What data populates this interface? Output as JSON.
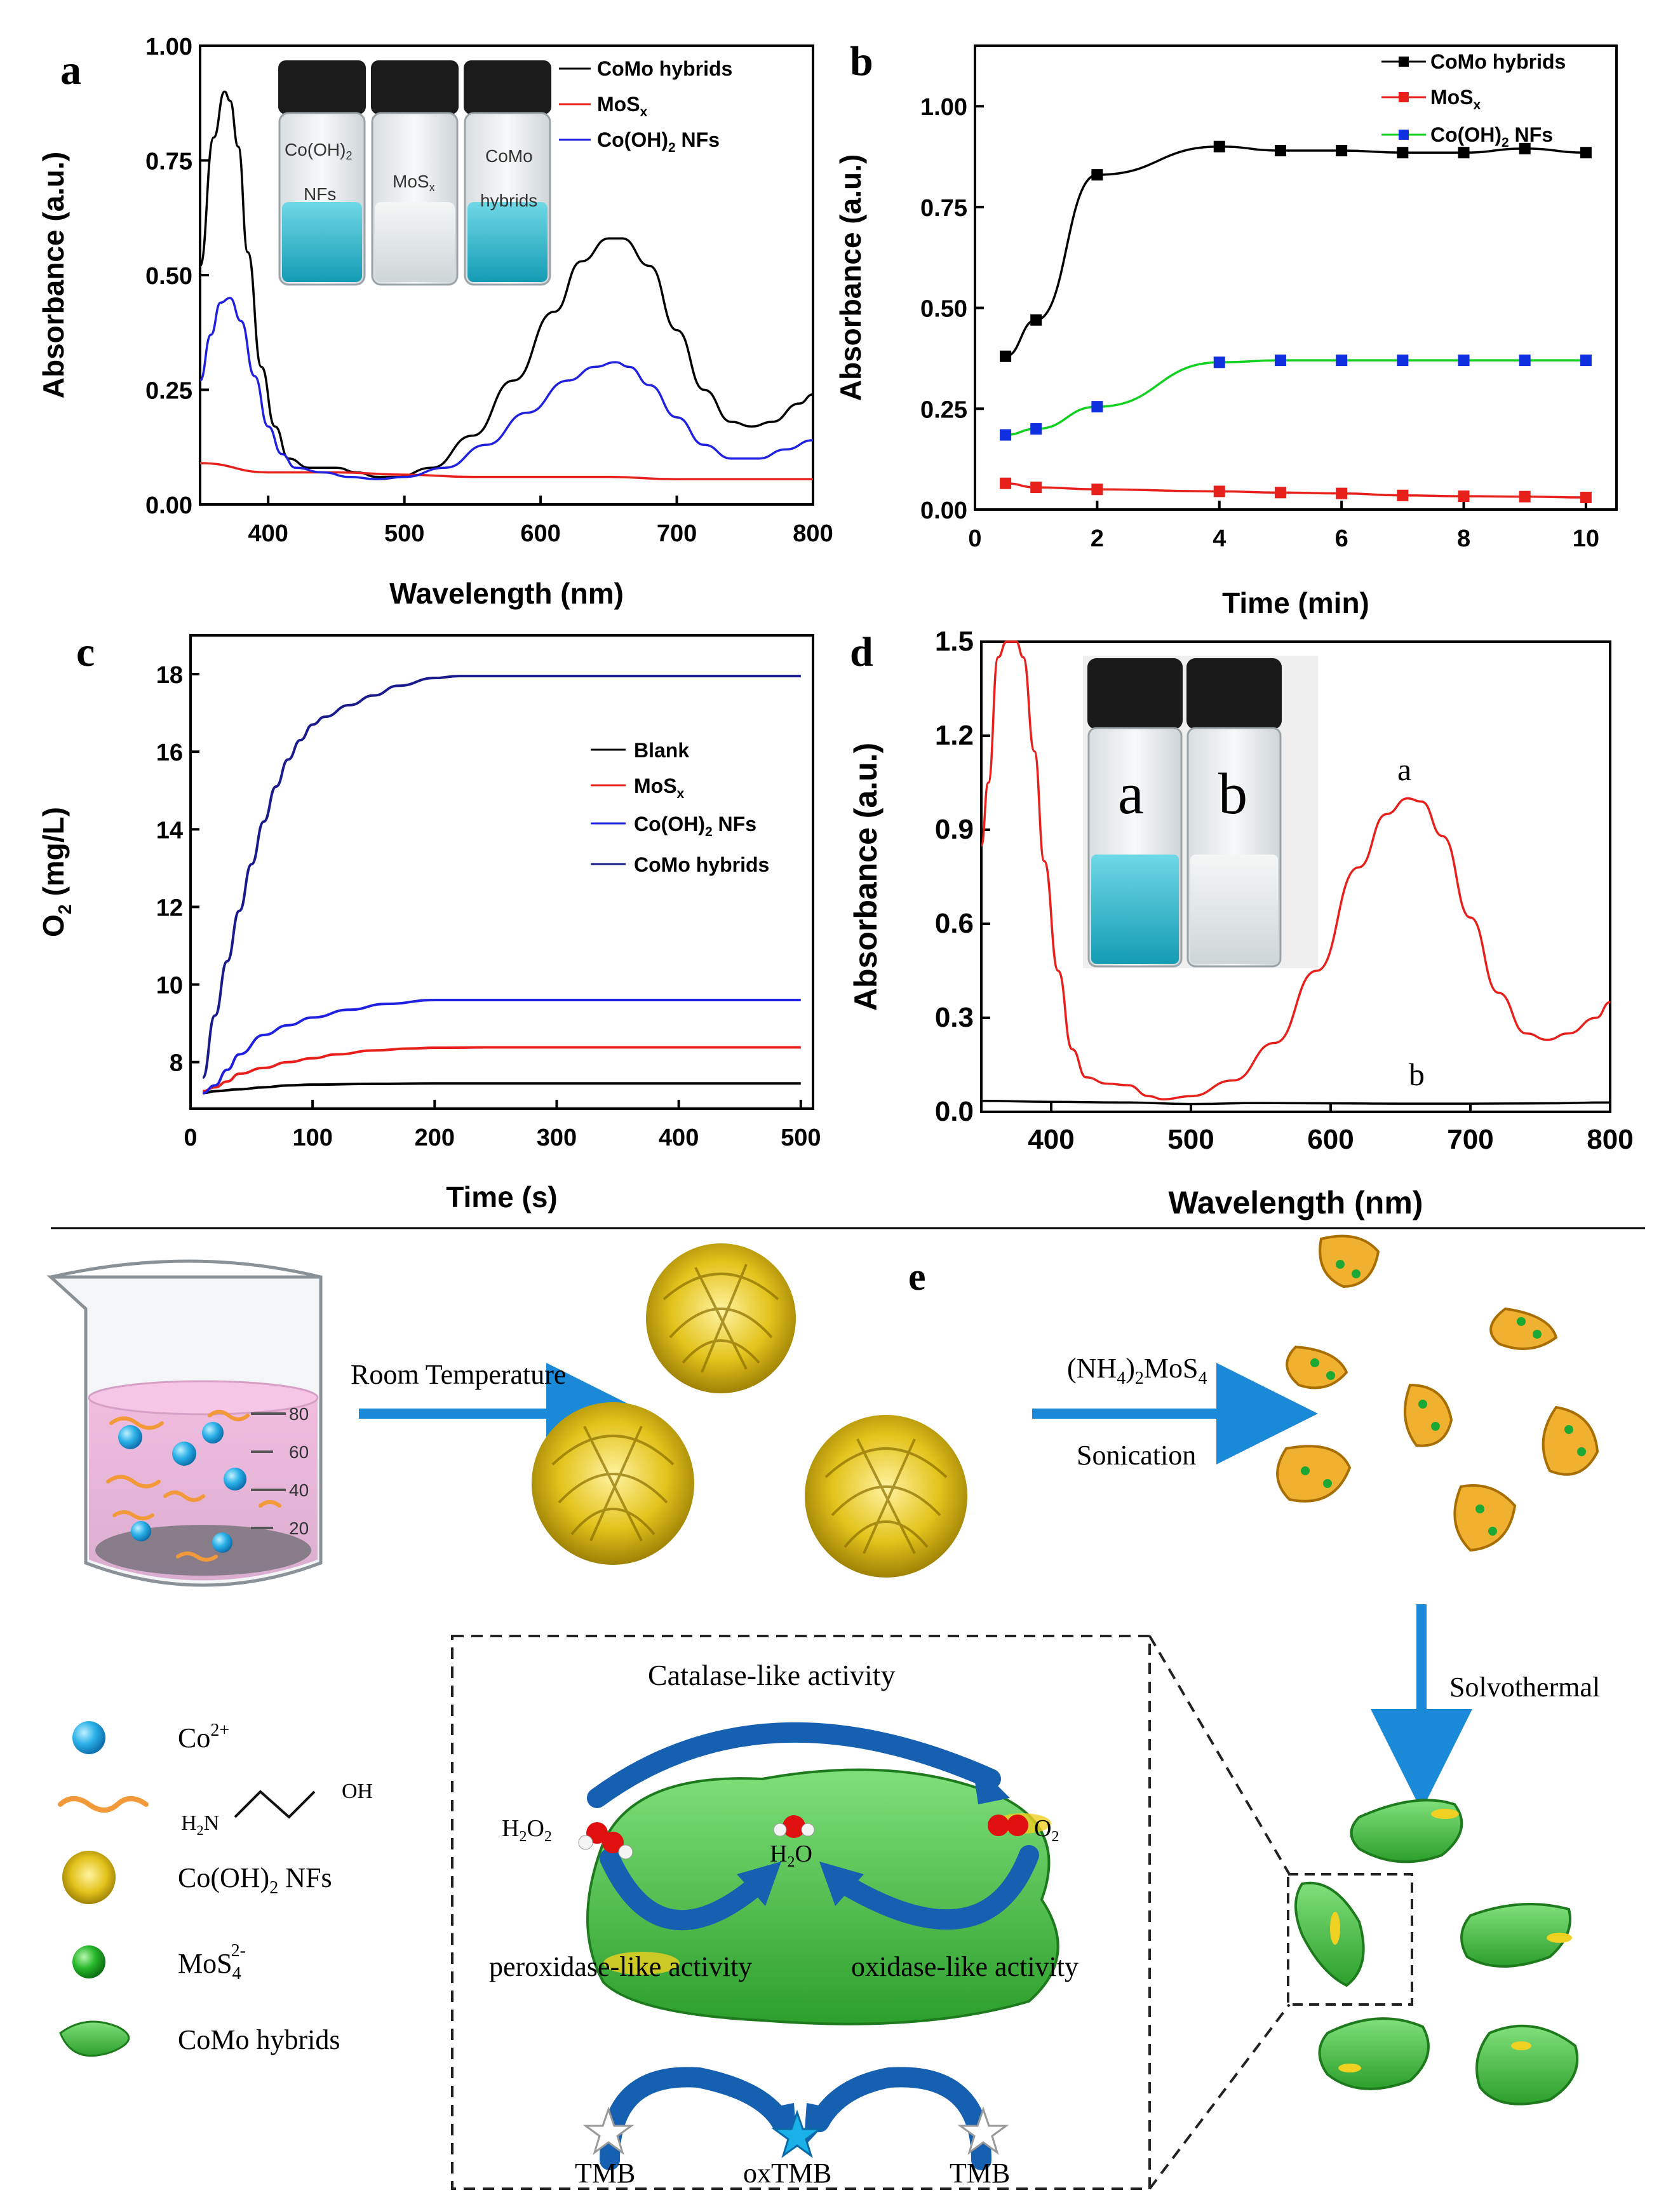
{
  "panel_letters": {
    "a": "a",
    "b": "b",
    "c": "c",
    "d": "d",
    "e": "e"
  },
  "chart_data": [
    {
      "id": "a",
      "type": "line",
      "xlabel": "Wavelength (nm)",
      "ylabel": "Absorbance (a.u.)",
      "xlim": [
        350,
        800
      ],
      "ylim": [
        0,
        1.0
      ],
      "xticks": [
        400,
        500,
        600,
        700,
        800
      ],
      "yticks": [
        0.0,
        0.25,
        0.5,
        0.75,
        1.0
      ],
      "xtick_labels": [
        "400",
        "500",
        "600",
        "700",
        "800"
      ],
      "ytick_labels": [
        "0.00",
        "0.25",
        "0.50",
        "0.75",
        "1.00"
      ],
      "legend_position": "top-right",
      "series": [
        {
          "name": "CoMo hybrids",
          "color": "#000000",
          "x": [
            350,
            360,
            368,
            372,
            378,
            385,
            395,
            405,
            415,
            430,
            450,
            465,
            480,
            495,
            520,
            550,
            580,
            610,
            630,
            650,
            660,
            680,
            700,
            720,
            740,
            755,
            770,
            790,
            800
          ],
          "y": [
            0.52,
            0.8,
            0.9,
            0.88,
            0.78,
            0.55,
            0.3,
            0.17,
            0.1,
            0.08,
            0.08,
            0.07,
            0.06,
            0.06,
            0.08,
            0.15,
            0.27,
            0.42,
            0.53,
            0.58,
            0.58,
            0.52,
            0.38,
            0.25,
            0.18,
            0.17,
            0.18,
            0.22,
            0.24
          ]
        },
        {
          "name": "MoSx",
          "color": "#e8201c",
          "x": [
            350,
            400,
            450,
            500,
            550,
            600,
            650,
            700,
            750,
            800
          ],
          "y": [
            0.09,
            0.07,
            0.07,
            0.065,
            0.06,
            0.06,
            0.06,
            0.055,
            0.055,
            0.055
          ]
        },
        {
          "name": "Co(OH)2 NFs",
          "color": "#2020e0",
          "x": [
            350,
            358,
            365,
            372,
            380,
            390,
            400,
            410,
            420,
            440,
            460,
            480,
            500,
            530,
            560,
            590,
            620,
            640,
            655,
            665,
            680,
            700,
            720,
            740,
            760,
            780,
            800
          ],
          "y": [
            0.27,
            0.37,
            0.44,
            0.45,
            0.4,
            0.28,
            0.17,
            0.11,
            0.08,
            0.07,
            0.06,
            0.055,
            0.06,
            0.08,
            0.13,
            0.2,
            0.27,
            0.3,
            0.31,
            0.3,
            0.26,
            0.19,
            0.13,
            0.1,
            0.1,
            0.12,
            0.14
          ]
        }
      ],
      "legend_entries": [
        "CoMo hybrids",
        "MoS",
        "Co(OH)",
        "NFs"
      ],
      "vial_labels": [
        "Co(OH)",
        "NFs",
        "MoS",
        "CoMo",
        "hybrids"
      ]
    },
    {
      "id": "b",
      "type": "line",
      "xlabel": "Time (min)",
      "ylabel": "Absorbance (a.u.)",
      "xlim": [
        0,
        10.5
      ],
      "ylim": [
        0,
        1.15
      ],
      "xticks": [
        0,
        2,
        4,
        6,
        8,
        10
      ],
      "yticks": [
        0.0,
        0.25,
        0.5,
        0.75,
        1.0
      ],
      "xtick_labels": [
        "0",
        "2",
        "4",
        "6",
        "8",
        "10"
      ],
      "ytick_labels": [
        "0.00",
        "0.25",
        "0.50",
        "0.75",
        "1.00"
      ],
      "legend_position": "top-right",
      "series": [
        {
          "name": "CoMo hybrids",
          "color": "#000000",
          "marker_color": "#000000",
          "x": [
            0.5,
            1,
            2,
            4,
            5,
            6,
            7,
            8,
            9,
            10
          ],
          "y": [
            0.38,
            0.47,
            0.83,
            0.9,
            0.89,
            0.89,
            0.885,
            0.885,
            0.895,
            0.885
          ]
        },
        {
          "name": "MoSx",
          "color": "#e8201c",
          "marker_color": "#e8201c",
          "x": [
            0.5,
            1,
            2,
            4,
            5,
            6,
            7,
            8,
            9,
            10
          ],
          "y": [
            0.065,
            0.055,
            0.05,
            0.045,
            0.042,
            0.04,
            0.035,
            0.033,
            0.032,
            0.03
          ]
        },
        {
          "name": "Co(OH)2 NFs",
          "color": "#10d020",
          "marker_color": "#1030e0",
          "x": [
            0.5,
            1,
            2,
            4,
            5,
            6,
            7,
            8,
            9,
            10
          ],
          "y": [
            0.185,
            0.2,
            0.255,
            0.365,
            0.37,
            0.37,
            0.37,
            0.37,
            0.37,
            0.37
          ]
        }
      ],
      "legend_entries": [
        "CoMo hybrids",
        "MoS",
        "Co(OH)",
        "NFs"
      ]
    },
    {
      "id": "c",
      "type": "line",
      "xlabel": "Time (s)",
      "ylabel": "O",
      "ylabel_sub": "2",
      "ylabel_unit": "(mg/L)",
      "xlim": [
        0,
        510
      ],
      "ylim": [
        6.8,
        19
      ],
      "xticks": [
        0,
        100,
        200,
        300,
        400,
        500
      ],
      "yticks": [
        8,
        10,
        12,
        14,
        16,
        18
      ],
      "xtick_labels": [
        "0",
        "100",
        "200",
        "300",
        "400",
        "500"
      ],
      "ytick_labels": [
        "8",
        "10",
        "12",
        "14",
        "16",
        "18"
      ],
      "legend_position": "right",
      "series": [
        {
          "name": "Blank",
          "color": "#000000",
          "x": [
            10,
            20,
            40,
            60,
            80,
            100,
            150,
            200,
            300,
            400,
            500
          ],
          "y": [
            7.2,
            7.25,
            7.3,
            7.35,
            7.4,
            7.42,
            7.44,
            7.45,
            7.45,
            7.45,
            7.45
          ]
        },
        {
          "name": "MoSx",
          "color": "#e8201c",
          "x": [
            10,
            20,
            30,
            40,
            60,
            80,
            100,
            120,
            150,
            180,
            200,
            250,
            300,
            400,
            500
          ],
          "y": [
            7.25,
            7.35,
            7.5,
            7.7,
            7.85,
            8.0,
            8.1,
            8.2,
            8.3,
            8.35,
            8.37,
            8.38,
            8.38,
            8.38,
            8.38
          ]
        },
        {
          "name": "Co(OH)2 NFs",
          "color": "#2020e0",
          "x": [
            10,
            20,
            30,
            40,
            60,
            80,
            100,
            130,
            160,
            200,
            250,
            300,
            400,
            500
          ],
          "y": [
            7.2,
            7.4,
            7.8,
            8.2,
            8.7,
            8.95,
            9.15,
            9.35,
            9.5,
            9.6,
            9.6,
            9.6,
            9.6,
            9.6
          ]
        },
        {
          "name": "CoMo hybrids",
          "color": "#1a1a8c",
          "x": [
            10,
            20,
            30,
            40,
            50,
            60,
            70,
            80,
            90,
            100,
            110,
            130,
            150,
            170,
            200,
            220,
            250,
            300,
            400,
            500
          ],
          "y": [
            7.6,
            9.2,
            10.6,
            11.9,
            13.1,
            14.2,
            15.1,
            15.8,
            16.3,
            16.7,
            16.9,
            17.2,
            17.45,
            17.7,
            17.9,
            17.95,
            17.95,
            17.95,
            17.95,
            17.95
          ]
        }
      ],
      "legend_entries": [
        "Blank",
        "MoS",
        "Co(OH)",
        "NFs",
        "CoMo hybrids"
      ]
    },
    {
      "id": "d",
      "type": "line",
      "xlabel": "Wavelength (nm)",
      "ylabel": "Absorbance (a.u.)",
      "xlim": [
        350,
        800
      ],
      "ylim": [
        0,
        1.5
      ],
      "xticks": [
        400,
        500,
        600,
        700,
        800
      ],
      "yticks": [
        0.0,
        0.3,
        0.6,
        0.9,
        1.2,
        1.5
      ],
      "xtick_labels": [
        "400",
        "500",
        "600",
        "700",
        "800"
      ],
      "ytick_labels": [
        "0.0",
        "0.3",
        "0.6",
        "0.9",
        "1.2",
        "1.5"
      ],
      "series": [
        {
          "name": "a",
          "color": "#e8201c",
          "x": [
            350,
            355,
            362,
            368,
            375,
            380,
            388,
            395,
            405,
            415,
            425,
            440,
            455,
            470,
            480,
            500,
            530,
            560,
            590,
            620,
            640,
            655,
            665,
            680,
            700,
            720,
            740,
            755,
            770,
            790,
            800
          ],
          "y": [
            0.85,
            1.05,
            1.45,
            1.5,
            1.5,
            1.45,
            1.15,
            0.8,
            0.45,
            0.2,
            0.11,
            0.09,
            0.085,
            0.05,
            0.04,
            0.05,
            0.1,
            0.22,
            0.45,
            0.78,
            0.95,
            1.0,
            0.99,
            0.88,
            0.62,
            0.38,
            0.25,
            0.23,
            0.25,
            0.3,
            0.35
          ]
        },
        {
          "name": "b",
          "color": "#000000",
          "x": [
            350,
            400,
            450,
            500,
            550,
            600,
            650,
            700,
            750,
            800
          ],
          "y": [
            0.035,
            0.032,
            0.03,
            0.025,
            0.028,
            0.027,
            0.026,
            0.026,
            0.027,
            0.03
          ]
        }
      ],
      "curve_labels": [
        "a",
        "b"
      ],
      "vial_labels": [
        "a",
        "b"
      ]
    }
  ],
  "scheme_e": {
    "room_temperature": "Room Temperature",
    "reagent": "(NH",
    "reagent_sub1": "4",
    "reagent_mid": ")",
    "reagent_sub2": "2",
    "reagent_end": "MoS",
    "reagent_sub3": "4",
    "sonication": "Sonication",
    "solvothermal": "Solvothermal",
    "catalase": "Catalase-like activity",
    "peroxidase": "peroxidase-like activity",
    "oxidase": "oxidase-like activity",
    "h2o2": "H",
    "h2o": "H",
    "o2": "O",
    "tmb_left": "TMB",
    "tmb_right": "TMB",
    "oxtmb": "oxTMB",
    "beaker_ticks": [
      "80",
      "60",
      "40",
      "20"
    ],
    "legend_co": "Co",
    "legend_co_sup": "2+",
    "legend_amine_h2n": "H",
    "legend_amine_oh": "OH",
    "legend_nfs": "Co(OH)",
    "legend_nfs_end": "NFs",
    "legend_mos": "MoS",
    "legend_mos_sup": "2-",
    "legend_mos_sub": "4",
    "legend_como": "CoMo hybrids"
  },
  "colors": {
    "black": "#000000",
    "red": "#e8201c",
    "blue": "#2020e0",
    "navy": "#1a1a8c",
    "green": "#10d020",
    "arrow": "#1a8ad8",
    "cyan": "#1ab0c8"
  }
}
